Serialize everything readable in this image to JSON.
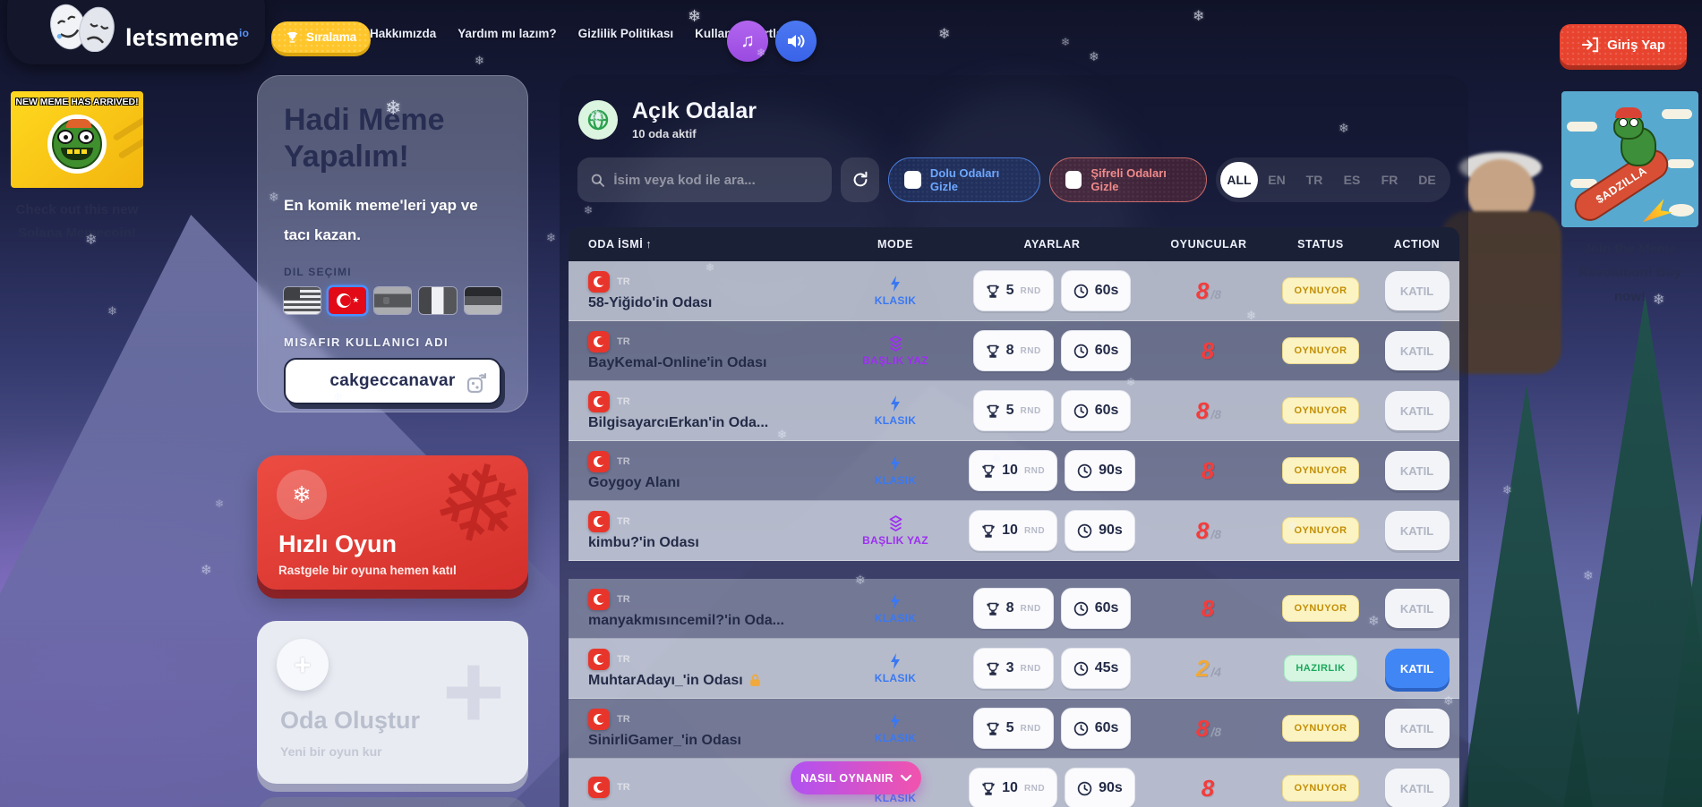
{
  "header": {
    "logo_text": "letsmeme",
    "logo_suffix": "io",
    "leaderboard_label": "Sıralama",
    "nav": [
      "Hakkımızda",
      "Yardım mı lazım?",
      "Gizlilik Politikası",
      "Kullanım Şartları"
    ],
    "login_label": "Giriş Yap"
  },
  "ads": {
    "left": {
      "banner_title": "NEW MEME HAS ARRIVED!",
      "caption": "Check out this new Solana Memecoin!"
    },
    "right": {
      "rocket_text": "$ADZILLA",
      "caption": "Join the Meme Revolution! Buy now!"
    }
  },
  "sidebar": {
    "hero": {
      "title": "Hadi Meme Yapalım!",
      "subtitle": "En komik meme'leri yap ve tacı kazan.",
      "language_label": "DIL SEÇIMI",
      "languages": [
        "en",
        "tr",
        "es",
        "fr",
        "de"
      ],
      "selected_language": "tr",
      "guest_label": "MISAFIR KULLANICI ADI",
      "guest_username": "cakgeccanavar"
    },
    "quick_game": {
      "title": "Hızlı Oyun",
      "subtitle": "Rastgele bir oyuna hemen katıl"
    },
    "create_room": {
      "title": "Oda Oluştur",
      "subtitle": "Yeni bir oyun kur"
    }
  },
  "rooms": {
    "title": "Açık Odalar",
    "subtitle": "10 oda aktif",
    "search_placeholder": "İsim veya kod ile ara...",
    "filters": {
      "hide_full": "Dolu Odaları Gizle",
      "hide_locked": "Şifreli Odaları Gizle"
    },
    "language_tabs": [
      "ALL",
      "EN",
      "TR",
      "ES",
      "FR",
      "DE"
    ],
    "active_tab": "ALL",
    "table": {
      "headers": [
        "ODA İSMİ",
        "MODE",
        "AYARLAR",
        "OYUNCULAR",
        "STATUS",
        "ACTION"
      ],
      "rounds_unit": "RND",
      "rows": [
        {
          "lang": "TR",
          "name": "58-Yiğido'in Odası",
          "locked": false,
          "mode": "KLASIK",
          "mode_type": "klasik",
          "rounds": "5",
          "duration": "60s",
          "players": "8",
          "capacity": "/8",
          "players_color": "red",
          "status": "OYNUYOR",
          "status_type": "playing",
          "action": "KATIL",
          "action_active": false
        },
        {
          "lang": "TR",
          "name": "BayKemal-Online'in Odası",
          "locked": false,
          "mode": "BAŞLIK YAZ",
          "mode_type": "baslik",
          "rounds": "8",
          "duration": "60s",
          "players": "8",
          "capacity": "",
          "players_color": "red",
          "status": "OYNUYOR",
          "status_type": "playing",
          "action": "KATIL",
          "action_active": false
        },
        {
          "lang": "TR",
          "name": "BilgisayarcıErkan'in Oda...",
          "locked": false,
          "mode": "KLASIK",
          "mode_type": "klasik",
          "rounds": "5",
          "duration": "60s",
          "players": "8",
          "capacity": "/8",
          "players_color": "red",
          "status": "OYNUYOR",
          "status_type": "playing",
          "action": "KATIL",
          "action_active": false
        },
        {
          "lang": "TR",
          "name": "Goygoy Alanı",
          "locked": false,
          "mode": "KLASIK",
          "mode_type": "klasik",
          "rounds": "10",
          "duration": "90s",
          "players": "8",
          "capacity": "",
          "players_color": "red",
          "status": "OYNUYOR",
          "status_type": "playing",
          "action": "KATIL",
          "action_active": false
        },
        {
          "lang": "TR",
          "name": "kimbu?'in Odası",
          "locked": false,
          "mode": "BAŞLIK YAZ",
          "mode_type": "baslik",
          "rounds": "10",
          "duration": "90s",
          "players": "8",
          "capacity": "/8",
          "players_color": "red",
          "status": "OYNUYOR",
          "status_type": "playing",
          "action": "KATIL",
          "action_active": false,
          "gap_after": true
        },
        {
          "lang": "TR",
          "name": "manyakmısıncemil?'in Oda...",
          "locked": false,
          "mode": "KLASIK",
          "mode_type": "klasik",
          "rounds": "8",
          "duration": "60s",
          "players": "8",
          "capacity": "",
          "players_color": "red",
          "status": "OYNUYOR",
          "status_type": "playing",
          "action": "KATIL",
          "action_active": false
        },
        {
          "lang": "TR",
          "name": "MuhtarAdayı_'in Odası",
          "locked": true,
          "mode": "KLASIK",
          "mode_type": "klasik",
          "rounds": "3",
          "duration": "45s",
          "players": "2",
          "capacity": "/4",
          "players_color": "amber",
          "status": "HAZIRLIK",
          "status_type": "ready",
          "action": "KATIL",
          "action_active": true
        },
        {
          "lang": "TR",
          "name": "SinirliGamer_'in Odası",
          "locked": false,
          "mode": "KLASIK",
          "mode_type": "klasik",
          "rounds": "5",
          "duration": "60s",
          "players": "8",
          "capacity": "/8",
          "players_color": "red",
          "status": "OYNUYOR",
          "status_type": "playing",
          "action": "KATIL",
          "action_active": false
        },
        {
          "lang": "TR",
          "name": "",
          "locked": false,
          "mode": "KLASIK",
          "mode_type": "klasik",
          "rounds": "10",
          "duration": "90s",
          "players": "8",
          "capacity": "",
          "players_color": "red",
          "status": "OYNUYOR",
          "status_type": "playing",
          "action": "KATIL",
          "action_active": false
        }
      ]
    }
  },
  "how_to_play_label": "NASIL OYNANIR",
  "icons": {
    "snowflake": "❄",
    "music_note": "♫",
    "sort_arrow": "↑",
    "star": "★",
    "plus": "+"
  },
  "colors": {
    "accent_red": "#e8432e",
    "accent_yellow": "#ffc62b",
    "accent_blue": "#4186f5",
    "accent_purple": "#9d2ff0",
    "mode_klasik": "#3a78f2",
    "mode_baslik": "#9d2ff0",
    "status_playing": "#c28f06",
    "status_ready": "#1ca85c",
    "players_full": "#f23d3d",
    "players_open": "#f0a93a"
  }
}
